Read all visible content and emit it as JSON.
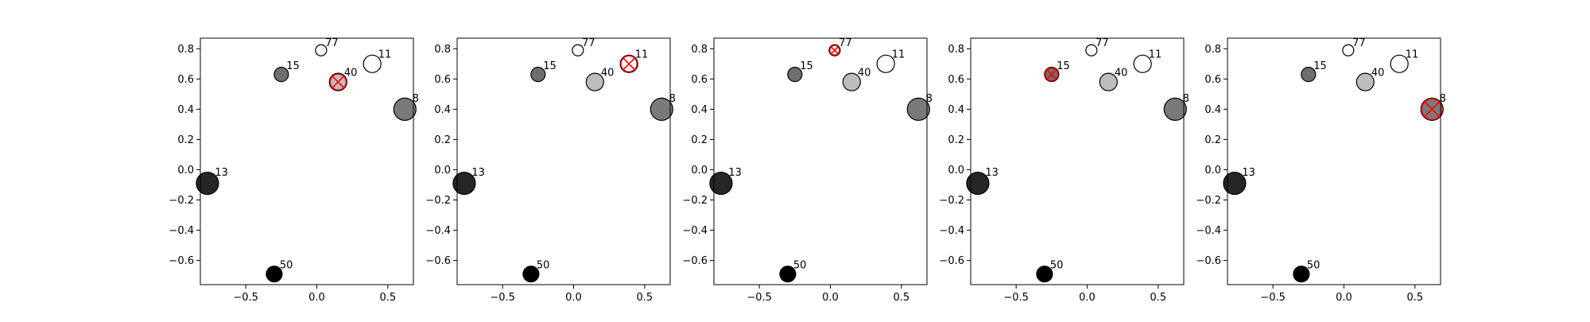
{
  "colors": {
    "background": "#ffffff",
    "axis": "#000000",
    "marker_edge": "#000000",
    "highlight": "#ff0000"
  },
  "chart_data": [
    {
      "type": "scatter",
      "title": "",
      "xlabel": "",
      "ylabel": "",
      "xlim": [
        -0.82,
        0.68
      ],
      "ylim": [
        -0.76,
        0.87
      ],
      "xticks": [
        -0.5,
        0.0,
        0.5
      ],
      "yticks": [
        -0.6,
        -0.4,
        -0.2,
        0.0,
        0.2,
        0.4,
        0.6,
        0.8
      ],
      "grid": false,
      "highlighted_label": "40",
      "points": [
        {
          "label": "77",
          "x": 0.03,
          "y": 0.79,
          "size": 7,
          "color": "#ffffff"
        },
        {
          "label": "11",
          "x": 0.39,
          "y": 0.7,
          "size": 11,
          "color": "#ffffff"
        },
        {
          "label": "15",
          "x": -0.25,
          "y": 0.63,
          "size": 9,
          "color": "#6e6e6e"
        },
        {
          "label": "40",
          "x": 0.15,
          "y": 0.58,
          "size": 11,
          "color": "#bdbdbd"
        },
        {
          "label": "8",
          "x": 0.62,
          "y": 0.4,
          "size": 14,
          "color": "#7a7a7a"
        },
        {
          "label": "13",
          "x": -0.77,
          "y": -0.09,
          "size": 14,
          "color": "#262626"
        },
        {
          "label": "50",
          "x": -0.3,
          "y": -0.69,
          "size": 10,
          "color": "#000000"
        }
      ]
    },
    {
      "type": "scatter",
      "title": "",
      "xlabel": "",
      "ylabel": "",
      "xlim": [
        -0.82,
        0.68
      ],
      "ylim": [
        -0.76,
        0.87
      ],
      "xticks": [
        -0.5,
        0.0,
        0.5
      ],
      "yticks": [
        -0.6,
        -0.4,
        -0.2,
        0.0,
        0.2,
        0.4,
        0.6,
        0.8
      ],
      "grid": false,
      "highlighted_label": "11",
      "points": [
        {
          "label": "77",
          "x": 0.03,
          "y": 0.79,
          "size": 7,
          "color": "#ffffff"
        },
        {
          "label": "11",
          "x": 0.39,
          "y": 0.7,
          "size": 11,
          "color": "#ffffff"
        },
        {
          "label": "15",
          "x": -0.25,
          "y": 0.63,
          "size": 9,
          "color": "#6e6e6e"
        },
        {
          "label": "40",
          "x": 0.15,
          "y": 0.58,
          "size": 11,
          "color": "#bdbdbd"
        },
        {
          "label": "8",
          "x": 0.62,
          "y": 0.4,
          "size": 14,
          "color": "#7a7a7a"
        },
        {
          "label": "13",
          "x": -0.77,
          "y": -0.09,
          "size": 14,
          "color": "#262626"
        },
        {
          "label": "50",
          "x": -0.3,
          "y": -0.69,
          "size": 10,
          "color": "#000000"
        }
      ]
    },
    {
      "type": "scatter",
      "title": "",
      "xlabel": "",
      "ylabel": "",
      "xlim": [
        -0.82,
        0.68
      ],
      "ylim": [
        -0.76,
        0.87
      ],
      "xticks": [
        -0.5,
        0.0,
        0.5
      ],
      "yticks": [
        -0.6,
        -0.4,
        -0.2,
        0.0,
        0.2,
        0.4,
        0.6,
        0.8
      ],
      "grid": false,
      "highlighted_label": "77",
      "points": [
        {
          "label": "77",
          "x": 0.03,
          "y": 0.79,
          "size": 7,
          "color": "#ffffff"
        },
        {
          "label": "11",
          "x": 0.39,
          "y": 0.7,
          "size": 11,
          "color": "#ffffff"
        },
        {
          "label": "15",
          "x": -0.25,
          "y": 0.63,
          "size": 9,
          "color": "#6e6e6e"
        },
        {
          "label": "40",
          "x": 0.15,
          "y": 0.58,
          "size": 11,
          "color": "#bdbdbd"
        },
        {
          "label": "8",
          "x": 0.62,
          "y": 0.4,
          "size": 14,
          "color": "#7a7a7a"
        },
        {
          "label": "13",
          "x": -0.77,
          "y": -0.09,
          "size": 14,
          "color": "#262626"
        },
        {
          "label": "50",
          "x": -0.3,
          "y": -0.69,
          "size": 10,
          "color": "#000000"
        }
      ]
    },
    {
      "type": "scatter",
      "title": "",
      "xlabel": "",
      "ylabel": "",
      "xlim": [
        -0.82,
        0.68
      ],
      "ylim": [
        -0.76,
        0.87
      ],
      "xticks": [
        -0.5,
        0.0,
        0.5
      ],
      "yticks": [
        -0.6,
        -0.4,
        -0.2,
        0.0,
        0.2,
        0.4,
        0.6,
        0.8
      ],
      "grid": false,
      "highlighted_label": "15",
      "points": [
        {
          "label": "77",
          "x": 0.03,
          "y": 0.79,
          "size": 7,
          "color": "#ffffff"
        },
        {
          "label": "11",
          "x": 0.39,
          "y": 0.7,
          "size": 11,
          "color": "#ffffff"
        },
        {
          "label": "15",
          "x": -0.25,
          "y": 0.63,
          "size": 9,
          "color": "#6e6e6e"
        },
        {
          "label": "40",
          "x": 0.15,
          "y": 0.58,
          "size": 11,
          "color": "#bdbdbd"
        },
        {
          "label": "8",
          "x": 0.62,
          "y": 0.4,
          "size": 14,
          "color": "#7a7a7a"
        },
        {
          "label": "13",
          "x": -0.77,
          "y": -0.09,
          "size": 14,
          "color": "#262626"
        },
        {
          "label": "50",
          "x": -0.3,
          "y": -0.69,
          "size": 10,
          "color": "#000000"
        }
      ]
    },
    {
      "type": "scatter",
      "title": "",
      "xlabel": "",
      "ylabel": "",
      "xlim": [
        -0.82,
        0.68
      ],
      "ylim": [
        -0.76,
        0.87
      ],
      "xticks": [
        -0.5,
        0.0,
        0.5
      ],
      "yticks": [
        -0.6,
        -0.4,
        -0.2,
        0.0,
        0.2,
        0.4,
        0.6,
        0.8
      ],
      "grid": false,
      "highlighted_label": "8",
      "points": [
        {
          "label": "77",
          "x": 0.03,
          "y": 0.79,
          "size": 7,
          "color": "#ffffff"
        },
        {
          "label": "11",
          "x": 0.39,
          "y": 0.7,
          "size": 11,
          "color": "#ffffff"
        },
        {
          "label": "15",
          "x": -0.25,
          "y": 0.63,
          "size": 9,
          "color": "#6e6e6e"
        },
        {
          "label": "40",
          "x": 0.15,
          "y": 0.58,
          "size": 11,
          "color": "#bdbdbd"
        },
        {
          "label": "8",
          "x": 0.62,
          "y": 0.4,
          "size": 14,
          "color": "#7a7a7a"
        },
        {
          "label": "13",
          "x": -0.77,
          "y": -0.09,
          "size": 14,
          "color": "#262626"
        },
        {
          "label": "50",
          "x": -0.3,
          "y": -0.69,
          "size": 10,
          "color": "#000000"
        }
      ]
    }
  ]
}
